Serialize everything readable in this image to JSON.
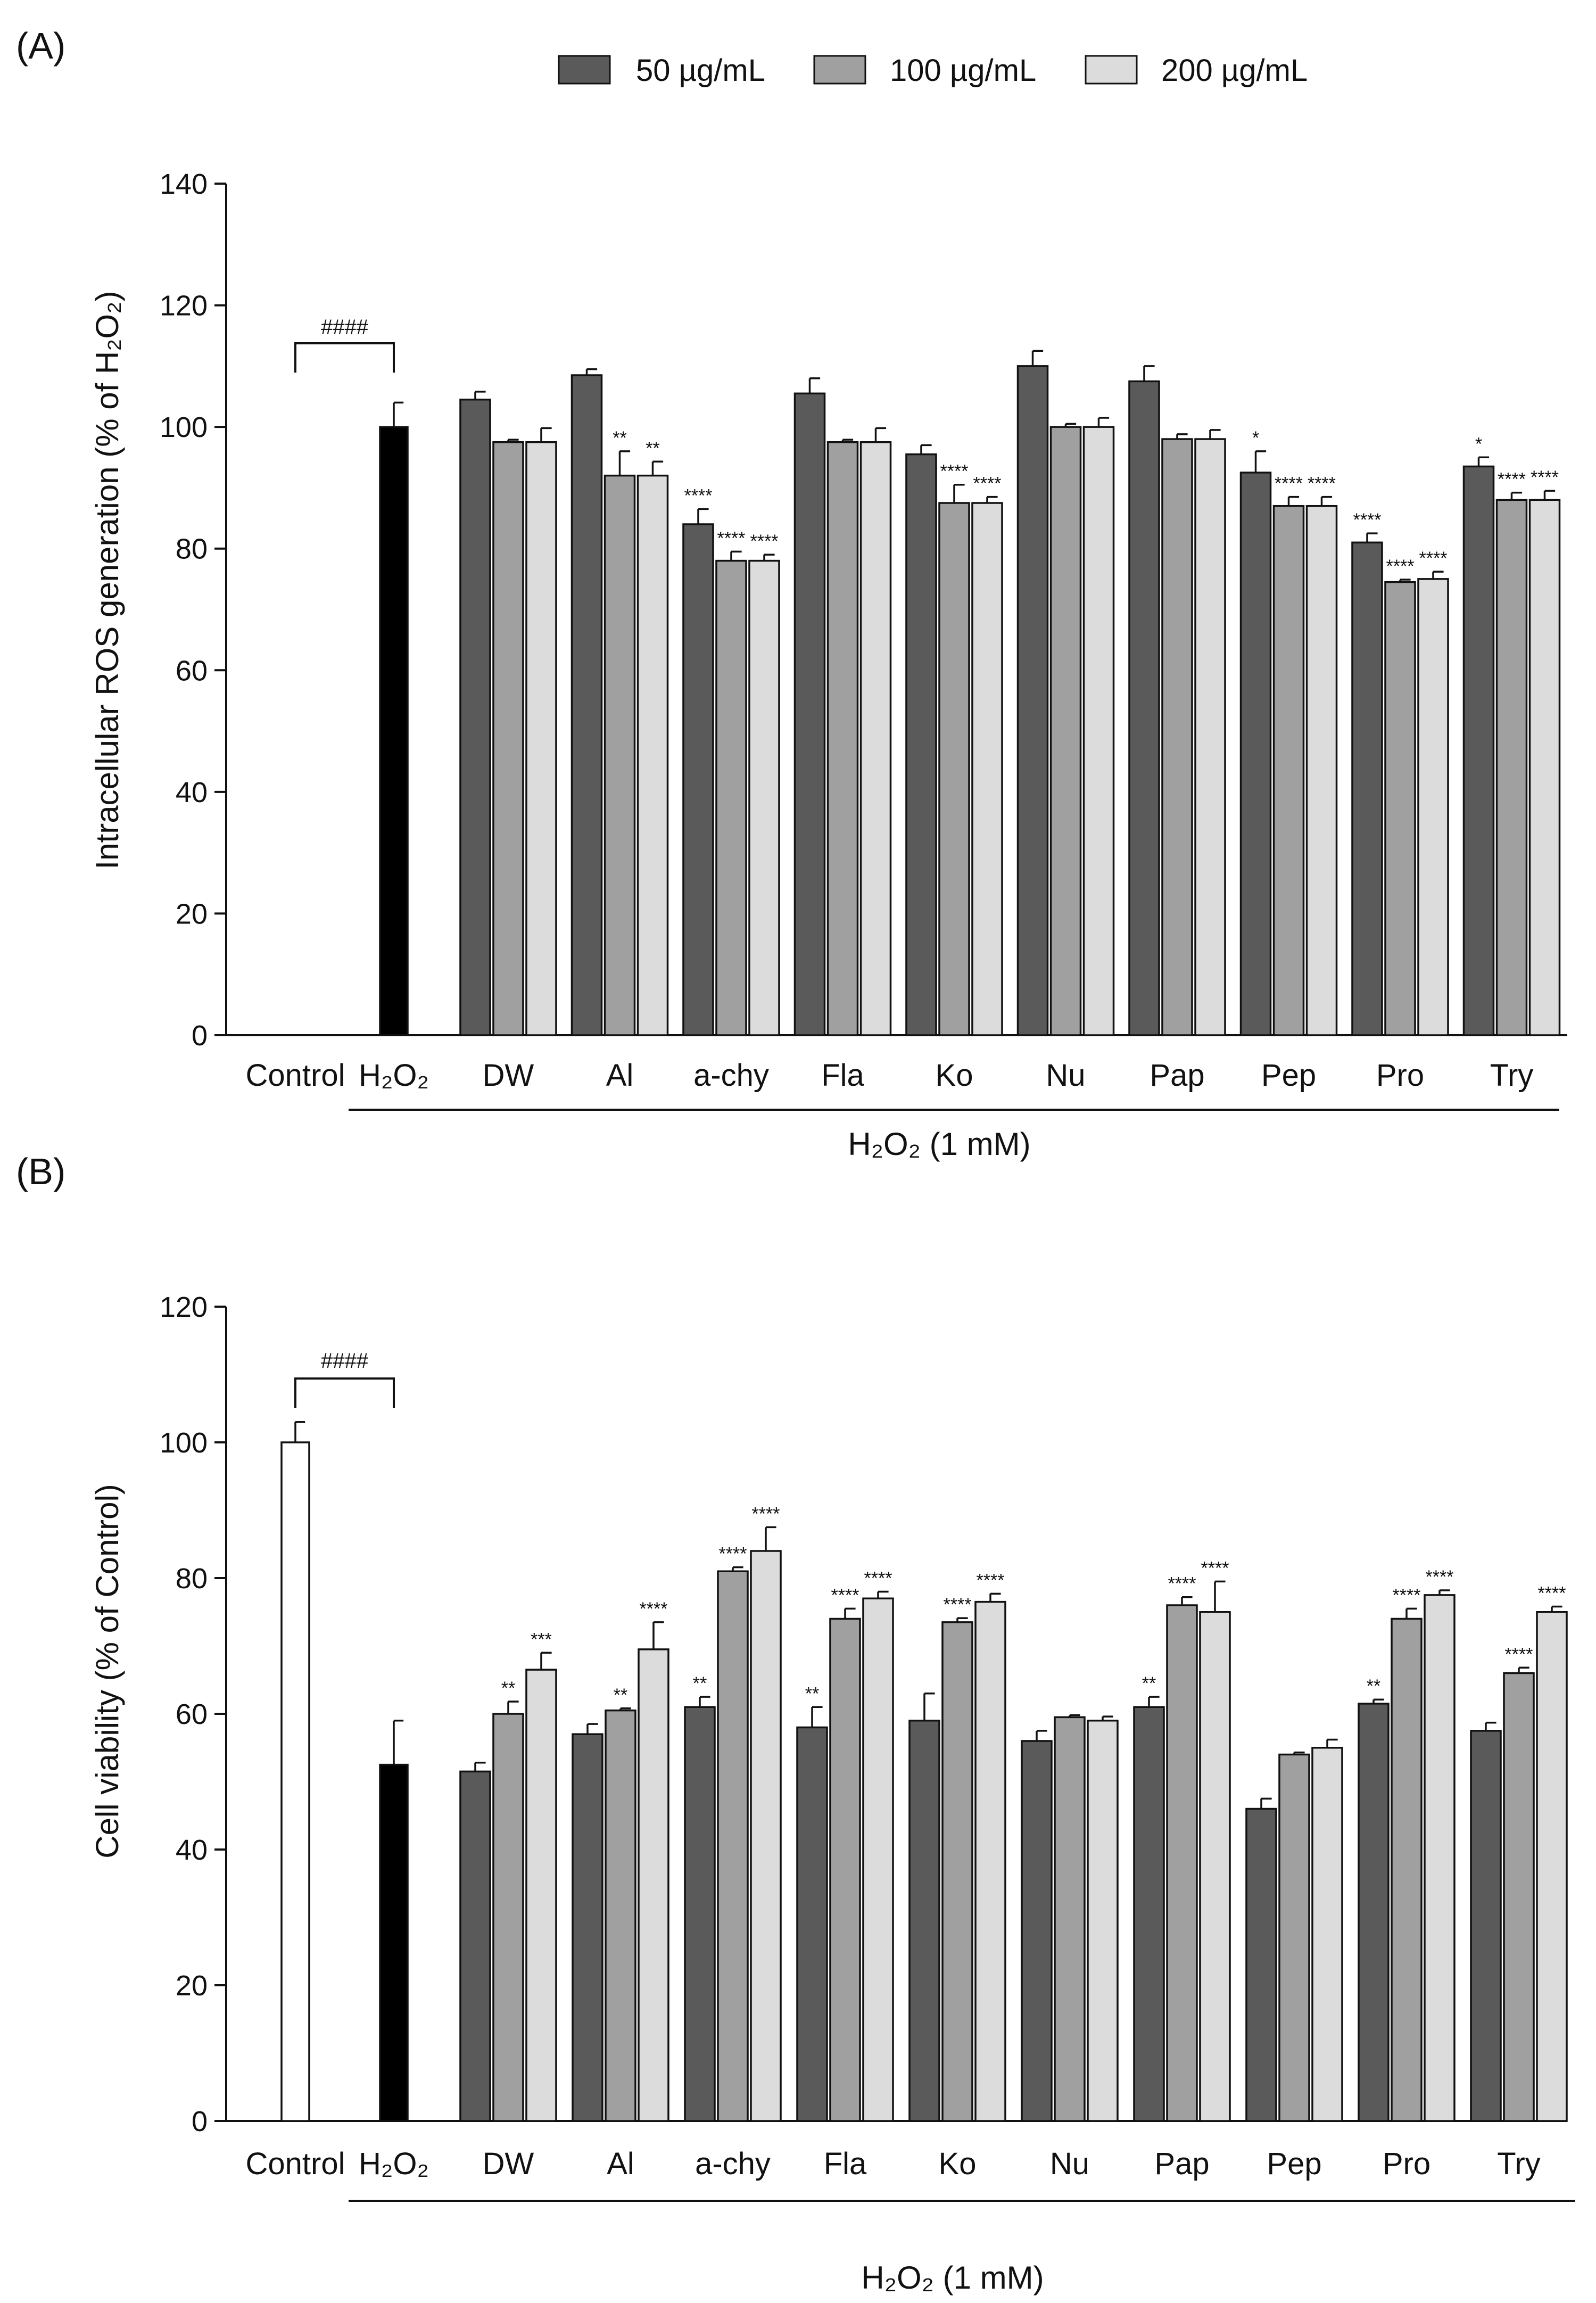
{
  "legend": {
    "items": [
      {
        "label": "50 µg/mL",
        "color": "#5a5a5a"
      },
      {
        "label": "100 µg/mL",
        "color": "#a0a0a0"
      },
      {
        "label": "200 µg/mL",
        "color": "#dcdcdc"
      }
    ]
  },
  "colors": {
    "control": "#ffffff",
    "h2o2": "#000000",
    "stroke": "#111111"
  },
  "chart_data": [
    {
      "panel_label": "(A)",
      "type": "bar",
      "ylabel": "Intracellular ROS generation (% of H₂O₂)",
      "ylim": [
        0,
        140
      ],
      "yticks": [
        0,
        20,
        40,
        60,
        80,
        100,
        120,
        140
      ],
      "xlabel": "H₂O₂ (1 mM)",
      "reference_bars": [
        {
          "label": "Control",
          "value": 0,
          "err": 0
        },
        {
          "label": "H₂O₂",
          "value": 100,
          "err": 4
        }
      ],
      "significance_bracket": "####",
      "categories": [
        "DW",
        "Al",
        "a-chy",
        "Fla",
        "Ko",
        "Nu",
        "Pap",
        "Pep",
        "Pro",
        "Try"
      ],
      "series": [
        {
          "name": "50 µg/mL",
          "values": [
            104.5,
            108.5,
            84,
            105.5,
            95.5,
            110,
            107.5,
            92.5,
            81,
            93.5
          ],
          "errors": [
            1.3,
            1,
            2.5,
            2.5,
            1.5,
            2.5,
            2.5,
            3.5,
            1.5,
            1.5
          ],
          "sig": [
            "",
            "",
            "****",
            "",
            "",
            "",
            "",
            "*",
            "****",
            "*"
          ]
        },
        {
          "name": "100 µg/mL",
          "values": [
            97.5,
            92,
            78,
            97.5,
            87.5,
            100,
            98,
            87,
            74.5,
            88
          ],
          "errors": [
            0.4,
            4,
            1.5,
            0.4,
            3,
            0.5,
            0.8,
            1.5,
            0.4,
            1.2
          ],
          "sig": [
            "",
            "**",
            "****",
            "",
            "****",
            "",
            "",
            "****",
            "****",
            "****"
          ]
        },
        {
          "name": "200 µg/mL",
          "values": [
            97.5,
            92,
            78,
            97.5,
            87.5,
            100,
            98,
            87,
            75,
            88
          ],
          "errors": [
            2.3,
            2.3,
            1,
            2.3,
            1,
            1.5,
            1.5,
            1.5,
            1.2,
            1.5
          ],
          "sig": [
            "",
            "**",
            "****",
            "",
            "****",
            "",
            "",
            "****",
            "****",
            "****"
          ]
        }
      ]
    },
    {
      "panel_label": "(B)",
      "type": "bar",
      "ylabel": "Cell viability (% of  Control)",
      "ylim": [
        0,
        120
      ],
      "yticks": [
        0,
        20,
        40,
        60,
        80,
        100,
        120
      ],
      "xlabel": "H₂O₂ (1 mM)",
      "reference_bars": [
        {
          "label": "Control",
          "value": 100,
          "err": 3
        },
        {
          "label": "H₂O₂",
          "value": 52.5,
          "err": 6.5
        }
      ],
      "significance_bracket": "####",
      "categories": [
        "DW",
        "Al",
        "a-chy",
        "Fla",
        "Ko",
        "Nu",
        "Pap",
        "Pep",
        "Pro",
        "Try"
      ],
      "series": [
        {
          "name": "50 µg/mL",
          "values": [
            51.5,
            57,
            61,
            58,
            59,
            56,
            61,
            46,
            61.5,
            57.5
          ],
          "errors": [
            1.3,
            1.5,
            1.5,
            3,
            4,
            1.5,
            1.5,
            1.5,
            0.6,
            1.2
          ],
          "sig": [
            "",
            "",
            "**",
            "**",
            "",
            "",
            "**",
            "",
            "**",
            ""
          ]
        },
        {
          "name": "100 µg/mL",
          "values": [
            60,
            60.5,
            81,
            74,
            73.5,
            59.5,
            76,
            54,
            74,
            66
          ],
          "errors": [
            1.8,
            0.3,
            0.6,
            1.5,
            0.6,
            0.3,
            1.2,
            0.3,
            1.5,
            0.8
          ],
          "sig": [
            "**",
            "**",
            "****",
            "****",
            "****",
            "",
            "****",
            "",
            "****",
            "****"
          ]
        },
        {
          "name": "200 µg/mL",
          "values": [
            66.5,
            69.5,
            84,
            77,
            76.5,
            59,
            75,
            55,
            77.5,
            75
          ],
          "errors": [
            2.5,
            4,
            3.5,
            1,
            1.2,
            0.6,
            4.5,
            1.2,
            0.7,
            0.8
          ],
          "sig": [
            "***",
            "****",
            "****",
            "****",
            "****",
            "",
            "****",
            "",
            "****",
            "****"
          ]
        }
      ]
    }
  ]
}
